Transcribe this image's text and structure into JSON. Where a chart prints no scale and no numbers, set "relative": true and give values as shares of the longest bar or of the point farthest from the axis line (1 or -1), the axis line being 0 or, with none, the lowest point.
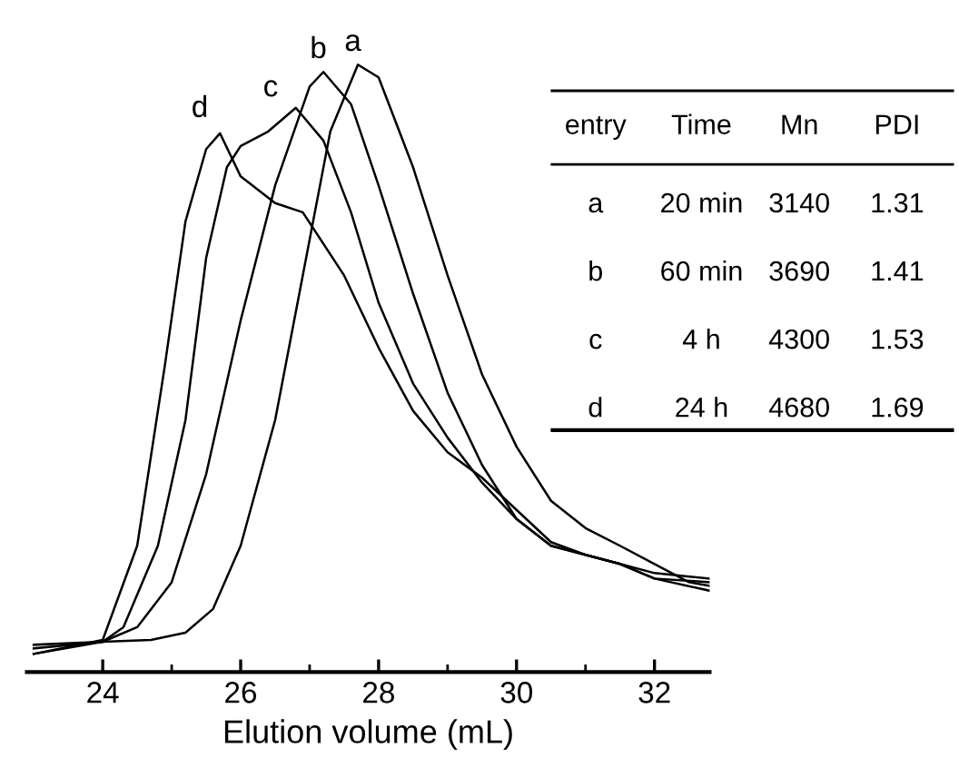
{
  "chart_data": [
    {
      "type": "line",
      "relative": true,
      "xlabel": "Elution volume (mL)",
      "xlim": [
        22.9,
        32.8
      ],
      "xticks": [
        24,
        26,
        28,
        30,
        32
      ],
      "grid": false,
      "legend": false,
      "marker": "none",
      "line_style": "solid",
      "series": [
        {
          "name": "a",
          "color": "#000000",
          "x": [
            23,
            24,
            24.7,
            25.2,
            25.6,
            26,
            26.5,
            27,
            27.3,
            27.7,
            28,
            28.5,
            29,
            29.5,
            30,
            30.5,
            31,
            31.5,
            32,
            32.5,
            32.8
          ],
          "values": [
            0.045,
            0.05,
            0.053,
            0.065,
            0.104,
            0.208,
            0.415,
            0.712,
            0.89,
            1.0,
            0.979,
            0.831,
            0.653,
            0.49,
            0.371,
            0.282,
            0.237,
            0.208,
            0.178,
            0.148,
            0.142
          ]
        },
        {
          "name": "b",
          "color": "#000000",
          "x": [
            23,
            24,
            24.5,
            25,
            25.5,
            26,
            26.5,
            27,
            27.2,
            27.6,
            28,
            28.5,
            29,
            29.5,
            30,
            30.5,
            31,
            31.5,
            32,
            32.8
          ],
          "values": [
            0.039,
            0.05,
            0.074,
            0.148,
            0.326,
            0.579,
            0.801,
            0.964,
            0.988,
            0.935,
            0.801,
            0.623,
            0.46,
            0.341,
            0.252,
            0.208,
            0.193,
            0.178,
            0.154,
            0.134
          ]
        },
        {
          "name": "c",
          "color": "#000000",
          "x": [
            23,
            24,
            24.3,
            24.8,
            25.2,
            25.5,
            25.8,
            26,
            26.4,
            26.8,
            27.2,
            27.6,
            28,
            28.5,
            29,
            29.5,
            30,
            30.5,
            31,
            31.5,
            32,
            32.8
          ],
          "values": [
            0.03,
            0.05,
            0.074,
            0.208,
            0.415,
            0.682,
            0.831,
            0.866,
            0.89,
            0.929,
            0.875,
            0.757,
            0.608,
            0.475,
            0.386,
            0.312,
            0.252,
            0.208,
            0.193,
            0.178,
            0.163,
            0.154
          ]
        },
        {
          "name": "d",
          "color": "#000000",
          "x": [
            23,
            24,
            24.5,
            24.9,
            25.2,
            25.5,
            25.7,
            26,
            26.5,
            26.9,
            27.5,
            28,
            28.5,
            29,
            29.5,
            30,
            30.5,
            31,
            31.5,
            32,
            32.8
          ],
          "values": [
            0.03,
            0.053,
            0.208,
            0.504,
            0.742,
            0.861,
            0.887,
            0.816,
            0.772,
            0.757,
            0.653,
            0.534,
            0.43,
            0.362,
            0.32,
            0.267,
            0.214,
            0.193,
            0.178,
            0.154,
            0.148
          ]
        }
      ]
    },
    {
      "type": "other",
      "annotations": [
        "entry",
        "Time",
        "Mn",
        "PDI",
        "a",
        "20 min",
        "3140",
        "1.31",
        "b",
        "60 min",
        "3690",
        "1.41",
        "c",
        "4 h",
        "4300",
        "1.53",
        "d",
        "24 h",
        "4680",
        "1.69"
      ]
    }
  ]
}
